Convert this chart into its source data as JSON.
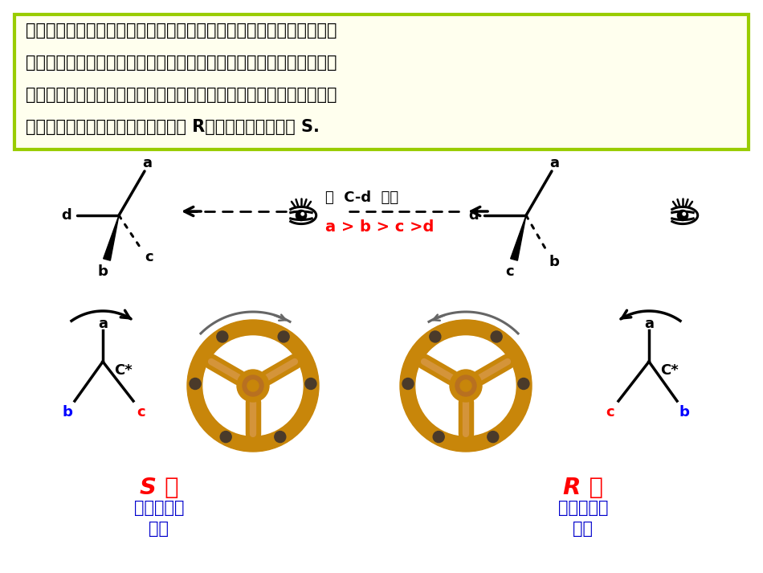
{
  "bg_color": "#ffffff",
  "box_bg": "#ffffee",
  "box_border": "#99cc00",
  "title_text_lines": [
    "将与手性碳原子相连的原子（团）按优先次序排列，使眼睛、手性碳原",
    "子和优先次序最小的原子（团）在同一直线上，并且将优先次序最小的",
    "原子（团）远离观察者，其余原子（团）按优先顺序由大到小的方向，",
    "顺时针的定义该手性碳原子的构型为 R，逆时针的则定义为 S."
  ],
  "direction_text": "沿  C-d  方向",
  "priority_text": "a > b > c >d",
  "s_label": "S 型",
  "s_sub": "（逆时针方\n向）",
  "r_label": "R 型",
  "r_sub": "（顺时针方\n向）",
  "red": "#ff0000",
  "blue": "#0000ff",
  "black": "#000000",
  "dark_blue": "#0000cc",
  "brown1": "#c8860a",
  "brown2": "#d4943a",
  "brown3": "#b87020",
  "gray_arrow": "#666666"
}
